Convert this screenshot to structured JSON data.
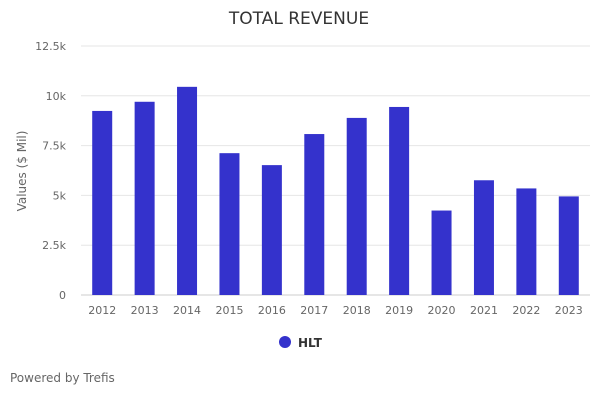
{
  "chart_data": {
    "type": "bar",
    "title": "TOTAL REVENUE",
    "xlabel": "",
    "ylabel": "Values ($ Mil)",
    "ylim": [
      0,
      12500
    ],
    "yticks": [
      0,
      2500,
      5000,
      7500,
      10000,
      12500
    ],
    "ytick_labels": [
      "0",
      "2.5k",
      "5k",
      "7.5k",
      "10k",
      "12.5k"
    ],
    "grid": true,
    "categories": [
      "2012",
      "2013",
      "2014",
      "2015",
      "2016",
      "2017",
      "2018",
      "2019",
      "2020",
      "2021",
      "2022",
      "2023"
    ],
    "series": [
      {
        "name": "HLT",
        "color": "#3432cc",
        "values": [
          9240,
          9700,
          10450,
          7120,
          6520,
          8080,
          8890,
          9440,
          4240,
          5760,
          5350,
          4950
        ]
      }
    ],
    "legend_position": "bottom"
  },
  "footer": {
    "credit": "Powered by Trefis"
  }
}
